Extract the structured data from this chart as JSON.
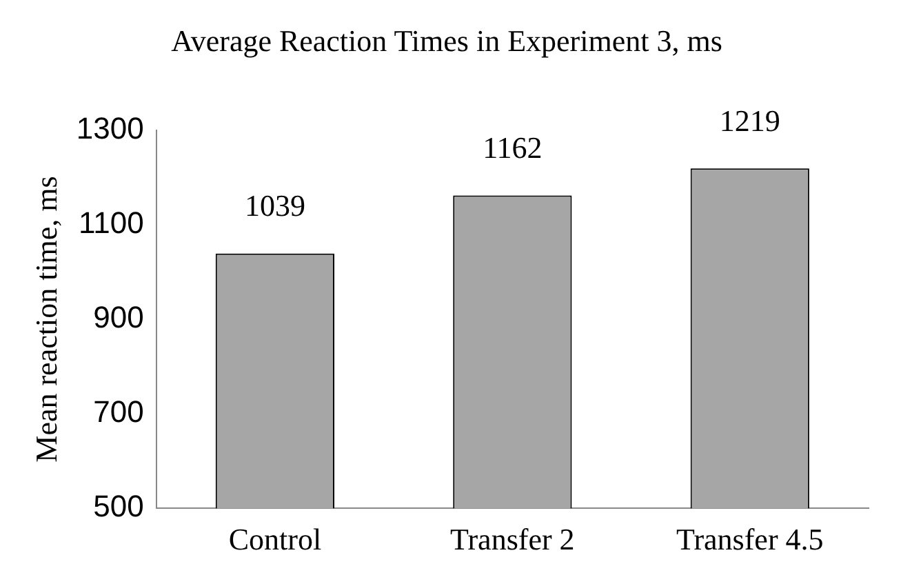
{
  "chart_data": {
    "type": "bar",
    "title": "Average Reaction Times in Experiment 3, ms",
    "ylabel": "Mean reaction time, ms",
    "categories": [
      "Control",
      "Transfer 2",
      "Transfer 4.5"
    ],
    "values": [
      1039,
      1162,
      1219
    ],
    "color": "#a6a6a6",
    "ylim": [
      500,
      1300
    ],
    "yticks": [
      500,
      700,
      900,
      1100,
      1300
    ],
    "grid": false,
    "legend": false,
    "data_labels": true
  }
}
